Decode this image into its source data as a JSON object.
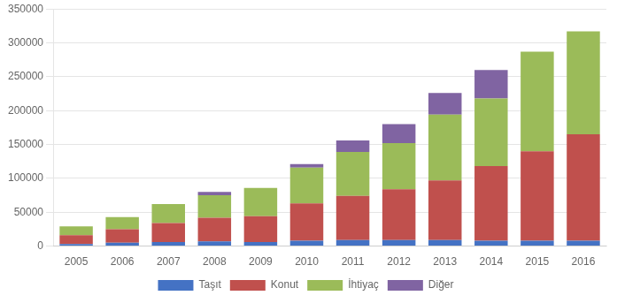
{
  "chart_data": {
    "type": "bar",
    "stacked": true,
    "categories": [
      "2005",
      "2006",
      "2007",
      "2008",
      "2009",
      "2010",
      "2011",
      "2012",
      "2013",
      "2014",
      "2015",
      "2016"
    ],
    "series": [
      {
        "name": "Taşıt",
        "color": "#4472c4",
        "values": [
          3000,
          5000,
          6000,
          7000,
          6000,
          8000,
          9000,
          9000,
          9000,
          8000,
          8000,
          8000
        ]
      },
      {
        "name": "Konut",
        "color": "#c0504d",
        "values": [
          13000,
          20000,
          28000,
          35000,
          38000,
          55000,
          65000,
          75000,
          88000,
          110000,
          132000,
          157000
        ]
      },
      {
        "name": "İhtiyaç",
        "color": "#9bbb59",
        "values": [
          13000,
          18000,
          28000,
          33000,
          42000,
          53000,
          65000,
          68000,
          97000,
          100000,
          147000,
          152000
        ]
      },
      {
        "name": "Diğer",
        "color": "#8064a2",
        "values": [
          0,
          0,
          0,
          5000,
          0,
          5000,
          17000,
          28000,
          32000,
          42000,
          0,
          0
        ]
      }
    ],
    "ylim": [
      0,
      350000
    ],
    "yticks": [
      0,
      50000,
      100000,
      150000,
      200000,
      250000,
      300000,
      350000
    ],
    "grid": true,
    "legend": "bottom"
  }
}
